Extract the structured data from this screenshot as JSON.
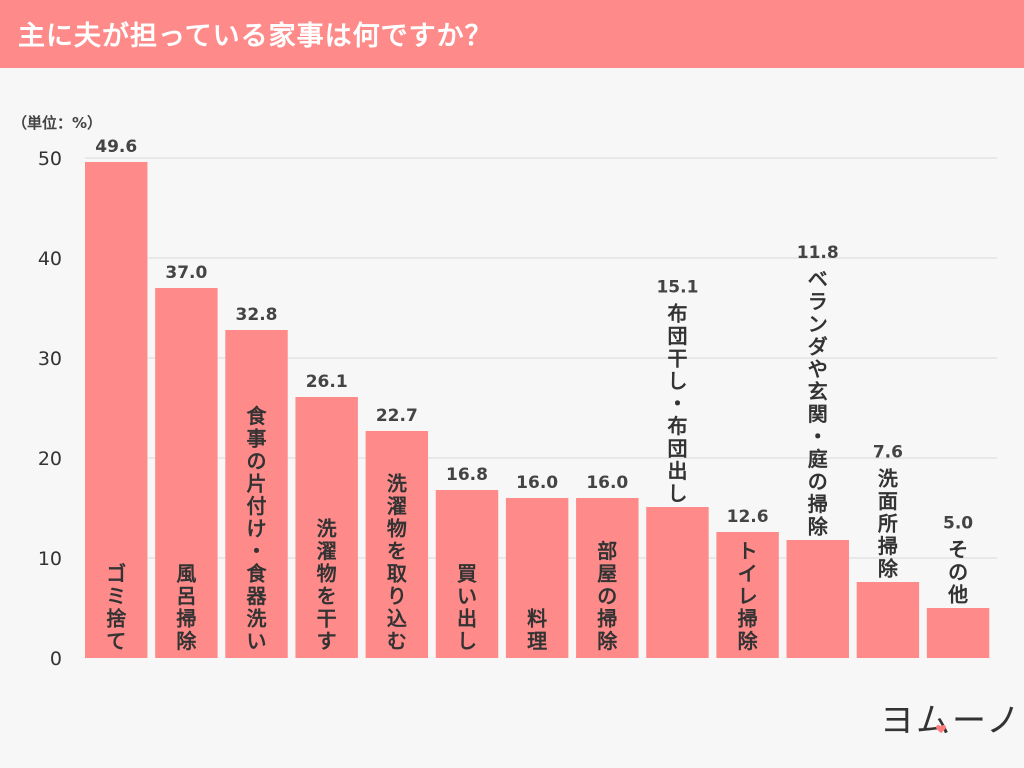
{
  "header": {
    "title": "主に夫が担っている家事は何ですか？"
  },
  "colors": {
    "header_bg": "#ff8a8a",
    "bar": "#ff8a8a",
    "grid": "#d9d9de",
    "logo_heart": "#ff7a7a"
  },
  "brand": {
    "logo_text": "ヨムーノ"
  },
  "chart_data": {
    "type": "bar",
    "unit_label": "（単位：%）",
    "categories": [
      "ゴミ捨て",
      "風呂掃除",
      "食事の片付け・食器洗い",
      "洗濯物を干す",
      "洗濯物を取り込む",
      "買い出し",
      "料理",
      "部屋の掃除",
      "布団干し・布団出し",
      "トイレ掃除",
      "ベランダや玄関・庭の掃除",
      "洗面所掃除",
      "その他"
    ],
    "values": [
      49.6,
      37.0,
      32.8,
      26.1,
      22.7,
      16.8,
      16.0,
      16.0,
      15.1,
      12.6,
      11.8,
      7.6,
      5.0
    ],
    "value_labels": [
      "49.6",
      "37.0",
      "32.8",
      "26.1",
      "22.7",
      "16.8",
      "16.0",
      "16.0",
      "15.1",
      "12.6",
      "11.8",
      "7.6",
      "5.0"
    ],
    "yticks": [
      "0",
      "10",
      "20",
      "30",
      "40",
      "50"
    ],
    "ylim": [
      0,
      50
    ],
    "grid": true,
    "category_label_placement": [
      "inside",
      "inside",
      "inside",
      "inside",
      "inside",
      "inside",
      "inside",
      "inside",
      "above",
      "inside",
      "above",
      "above",
      "above"
    ]
  }
}
